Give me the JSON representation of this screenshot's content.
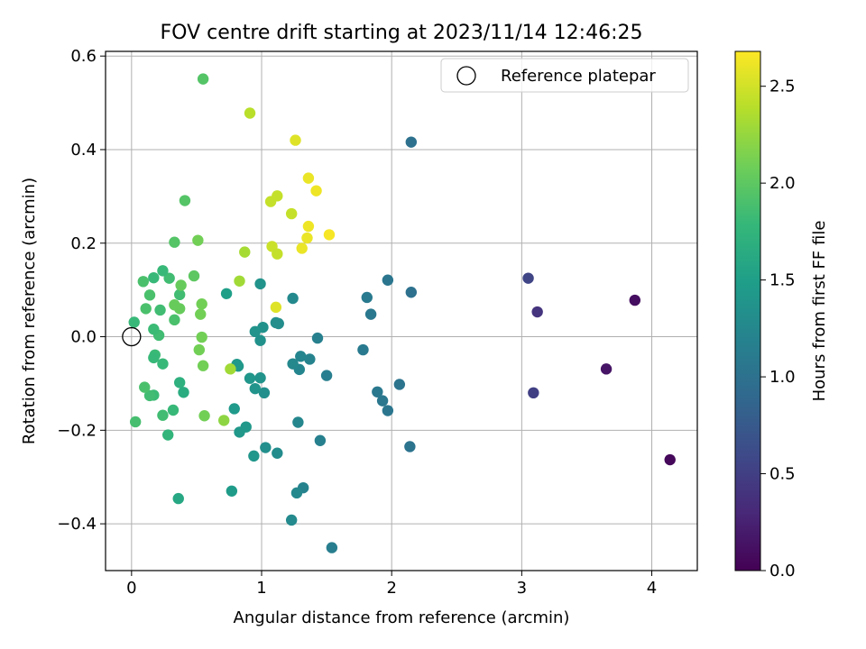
{
  "chart_data": {
    "type": "scatter",
    "title": "FOV centre drift starting at 2023/11/14 12:46:25",
    "xlabel": "Angular distance from reference (arcmin)",
    "ylabel": "Rotation from reference (arcmin)",
    "xlim": [
      -0.2,
      4.35
    ],
    "ylim": [
      -0.5,
      0.61
    ],
    "xticks": [
      0,
      1,
      2,
      3,
      4
    ],
    "xtick_labels": [
      "0",
      "1",
      "2",
      "3",
      "4"
    ],
    "yticks": [
      -0.4,
      -0.2,
      0.0,
      0.2,
      0.4,
      0.6
    ],
    "ytick_labels": [
      "−0.4",
      "−0.2",
      "0.0",
      "0.2",
      "0.4",
      "0.6"
    ],
    "grid": true,
    "legend": {
      "position": "top-right",
      "entries": [
        "Reference platepar"
      ]
    },
    "reference_point": {
      "x": 0,
      "y": 0
    },
    "colorbar": {
      "label": "Hours from first FF file",
      "colormap": "viridis",
      "range": [
        0,
        2.68
      ],
      "ticks": [
        0.0,
        0.5,
        1.0,
        1.5,
        2.0,
        2.5
      ],
      "tick_labels": [
        "0.0",
        "0.5",
        "1.0",
        "1.5",
        "2.0",
        "2.5"
      ]
    },
    "points": [
      {
        "x": 4.14,
        "y": -0.263,
        "h": 0.05
      },
      {
        "x": 3.87,
        "y": 0.078,
        "h": 0.1
      },
      {
        "x": 3.65,
        "y": -0.069,
        "h": 0.15
      },
      {
        "x": 3.12,
        "y": 0.053,
        "h": 0.4
      },
      {
        "x": 3.09,
        "y": -0.12,
        "h": 0.5
      },
      {
        "x": 3.05,
        "y": 0.125,
        "h": 0.55
      },
      {
        "x": 2.15,
        "y": 0.416,
        "h": 1.0
      },
      {
        "x": 2.15,
        "y": 0.095,
        "h": 1.0
      },
      {
        "x": 2.14,
        "y": -0.235,
        "h": 1.02
      },
      {
        "x": 2.06,
        "y": -0.102,
        "h": 1.03
      },
      {
        "x": 1.97,
        "y": 0.121,
        "h": 1.05
      },
      {
        "x": 1.97,
        "y": -0.158,
        "h": 1.05
      },
      {
        "x": 1.93,
        "y": -0.137,
        "h": 1.07
      },
      {
        "x": 1.89,
        "y": -0.118,
        "h": 1.08
      },
      {
        "x": 1.84,
        "y": 0.048,
        "h": 1.08
      },
      {
        "x": 1.81,
        "y": 0.084,
        "h": 1.1
      },
      {
        "x": 1.78,
        "y": -0.028,
        "h": 1.1
      },
      {
        "x": 1.54,
        "y": -0.451,
        "h": 1.15
      },
      {
        "x": 1.5,
        "y": -0.083,
        "h": 1.15
      },
      {
        "x": 1.45,
        "y": -0.222,
        "h": 1.17
      },
      {
        "x": 1.43,
        "y": -0.003,
        "h": 1.17
      },
      {
        "x": 1.37,
        "y": -0.048,
        "h": 1.2
      },
      {
        "x": 1.32,
        "y": -0.323,
        "h": 1.2
      },
      {
        "x": 1.3,
        "y": -0.042,
        "h": 1.22
      },
      {
        "x": 1.29,
        "y": -0.07,
        "h": 1.22
      },
      {
        "x": 1.28,
        "y": -0.183,
        "h": 1.24
      },
      {
        "x": 1.27,
        "y": -0.334,
        "h": 1.25
      },
      {
        "x": 1.24,
        "y": -0.058,
        "h": 1.25
      },
      {
        "x": 1.24,
        "y": 0.082,
        "h": 1.27
      },
      {
        "x": 1.23,
        "y": -0.392,
        "h": 1.28
      },
      {
        "x": 1.13,
        "y": 0.028,
        "h": 1.3
      },
      {
        "x": 1.12,
        "y": -0.249,
        "h": 1.3
      },
      {
        "x": 1.11,
        "y": 0.03,
        "h": 1.32
      },
      {
        "x": 1.03,
        "y": -0.237,
        "h": 1.33
      },
      {
        "x": 1.02,
        "y": -0.12,
        "h": 1.33
      },
      {
        "x": 1.01,
        "y": 0.02,
        "h": 1.35
      },
      {
        "x": 0.99,
        "y": -0.008,
        "h": 1.35
      },
      {
        "x": 0.99,
        "y": 0.113,
        "h": 1.37
      },
      {
        "x": 0.99,
        "y": -0.088,
        "h": 1.37
      },
      {
        "x": 0.95,
        "y": 0.011,
        "h": 1.38
      },
      {
        "x": 0.95,
        "y": -0.111,
        "h": 1.38
      },
      {
        "x": 0.94,
        "y": -0.255,
        "h": 1.4
      },
      {
        "x": 0.91,
        "y": -0.089,
        "h": 1.4
      },
      {
        "x": 0.88,
        "y": -0.193,
        "h": 1.42
      },
      {
        "x": 0.83,
        "y": -0.204,
        "h": 1.42
      },
      {
        "x": 0.82,
        "y": -0.063,
        "h": 1.43
      },
      {
        "x": 0.81,
        "y": -0.059,
        "h": 1.43
      },
      {
        "x": 0.79,
        "y": -0.154,
        "h": 1.45
      },
      {
        "x": 0.77,
        "y": -0.33,
        "h": 1.47
      },
      {
        "x": 0.73,
        "y": 0.092,
        "h": 1.5
      },
      {
        "x": 0.55,
        "y": 0.551,
        "h": 1.95
      },
      {
        "x": 0.41,
        "y": 0.291,
        "h": 1.95
      },
      {
        "x": 0.36,
        "y": -0.346,
        "h": 1.6
      },
      {
        "x": 0.4,
        "y": -0.119,
        "h": 1.65
      },
      {
        "x": 0.37,
        "y": -0.098,
        "h": 1.7
      },
      {
        "x": 0.37,
        "y": 0.09,
        "h": 1.85
      },
      {
        "x": 0.38,
        "y": 0.11,
        "h": 2.05
      },
      {
        "x": 0.37,
        "y": 0.06,
        "h": 2.05
      },
      {
        "x": 0.33,
        "y": 0.202,
        "h": 1.95
      },
      {
        "x": 0.33,
        "y": 0.068,
        "h": 2.05
      },
      {
        "x": 0.33,
        "y": 0.036,
        "h": 1.9
      },
      {
        "x": 0.32,
        "y": -0.157,
        "h": 1.8
      },
      {
        "x": 0.29,
        "y": 0.125,
        "h": 1.85
      },
      {
        "x": 0.28,
        "y": -0.21,
        "h": 1.75
      },
      {
        "x": 0.24,
        "y": 0.141,
        "h": 1.8
      },
      {
        "x": 0.24,
        "y": -0.058,
        "h": 1.8
      },
      {
        "x": 0.24,
        "y": -0.168,
        "h": 1.85
      },
      {
        "x": 0.22,
        "y": 0.057,
        "h": 1.85
      },
      {
        "x": 0.21,
        "y": 0.003,
        "h": 1.85
      },
      {
        "x": 0.18,
        "y": -0.039,
        "h": 1.82
      },
      {
        "x": 0.17,
        "y": -0.045,
        "h": 1.8
      },
      {
        "x": 0.17,
        "y": 0.126,
        "h": 1.8
      },
      {
        "x": 0.17,
        "y": -0.125,
        "h": 1.82
      },
      {
        "x": 0.17,
        "y": 0.016,
        "h": 1.82
      },
      {
        "x": 0.14,
        "y": -0.126,
        "h": 1.85
      },
      {
        "x": 0.14,
        "y": 0.089,
        "h": 1.9
      },
      {
        "x": 0.11,
        "y": 0.06,
        "h": 1.9
      },
      {
        "x": 0.1,
        "y": -0.108,
        "h": 1.9
      },
      {
        "x": 0.09,
        "y": 0.118,
        "h": 1.9
      },
      {
        "x": 0.03,
        "y": -0.182,
        "h": 1.88
      },
      {
        "x": 0.02,
        "y": 0.031,
        "h": 1.8
      },
      {
        "x": 0.48,
        "y": 0.13,
        "h": 2.0
      },
      {
        "x": 0.51,
        "y": 0.206,
        "h": 2.1
      },
      {
        "x": 0.52,
        "y": -0.028,
        "h": 2.1
      },
      {
        "x": 0.53,
        "y": 0.048,
        "h": 2.1
      },
      {
        "x": 0.54,
        "y": 0.07,
        "h": 2.1
      },
      {
        "x": 0.54,
        "y": -0.001,
        "h": 2.1
      },
      {
        "x": 0.55,
        "y": -0.062,
        "h": 2.1
      },
      {
        "x": 0.56,
        "y": -0.169,
        "h": 2.1
      },
      {
        "x": 0.71,
        "y": -0.179,
        "h": 2.22
      },
      {
        "x": 0.76,
        "y": -0.069,
        "h": 2.3
      },
      {
        "x": 0.83,
        "y": 0.119,
        "h": 2.3
      },
      {
        "x": 0.87,
        "y": 0.181,
        "h": 2.32
      },
      {
        "x": 0.91,
        "y": 0.478,
        "h": 2.4
      },
      {
        "x": 1.07,
        "y": 0.289,
        "h": 2.45
      },
      {
        "x": 1.08,
        "y": 0.193,
        "h": 2.47
      },
      {
        "x": 1.11,
        "y": 0.063,
        "h": 2.55
      },
      {
        "x": 1.12,
        "y": 0.301,
        "h": 2.45
      },
      {
        "x": 1.12,
        "y": 0.177,
        "h": 2.45
      },
      {
        "x": 1.23,
        "y": 0.263,
        "h": 2.45
      },
      {
        "x": 1.26,
        "y": 0.42,
        "h": 2.55
      },
      {
        "x": 1.31,
        "y": 0.189,
        "h": 2.6
      },
      {
        "x": 1.35,
        "y": 0.211,
        "h": 2.6
      },
      {
        "x": 1.36,
        "y": 0.236,
        "h": 2.62
      },
      {
        "x": 1.36,
        "y": 0.339,
        "h": 2.6
      },
      {
        "x": 1.42,
        "y": 0.312,
        "h": 2.62
      },
      {
        "x": 1.52,
        "y": 0.218,
        "h": 2.65
      }
    ]
  }
}
